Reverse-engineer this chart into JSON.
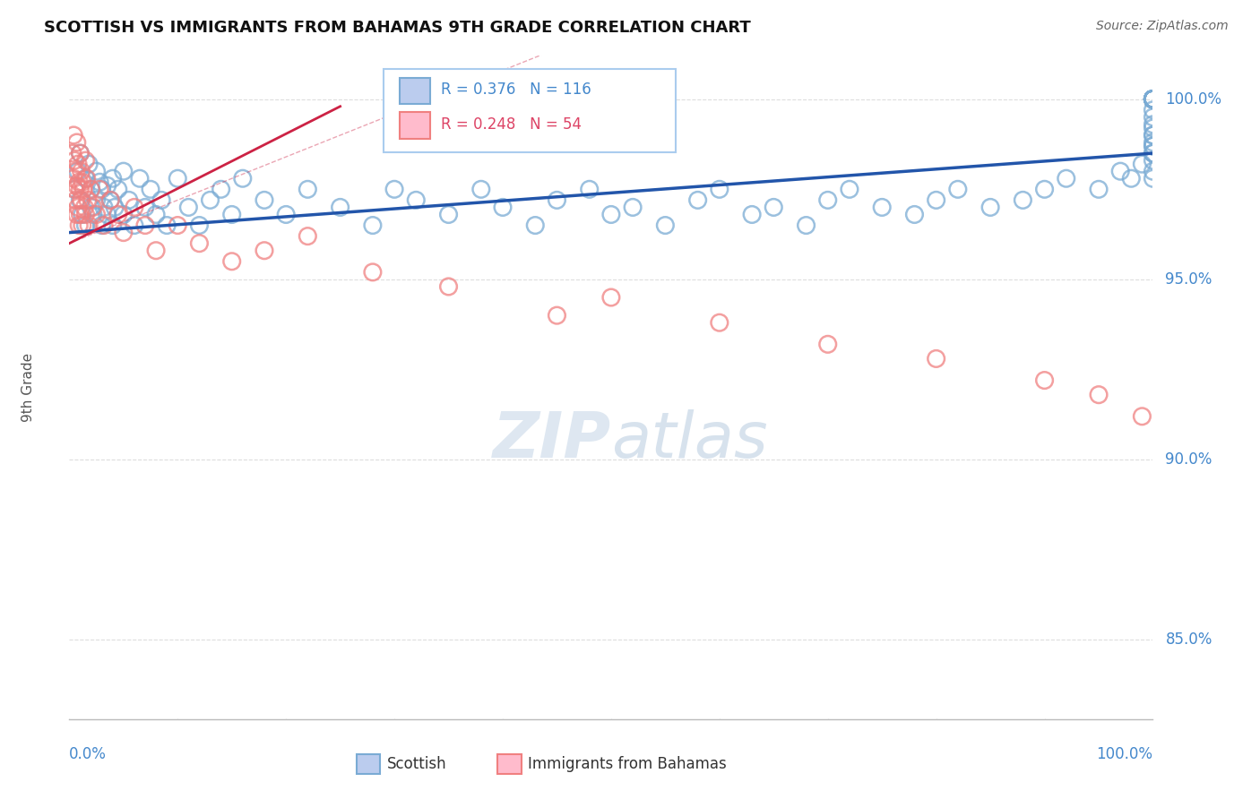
{
  "title": "SCOTTISH VS IMMIGRANTS FROM BAHAMAS 9TH GRADE CORRELATION CHART",
  "source": "Source: ZipAtlas.com",
  "ylabel": "9th Grade",
  "y_ticks": [
    0.85,
    0.9,
    0.95,
    1.0
  ],
  "y_tick_labels": [
    "85.0%",
    "90.0%",
    "95.0%",
    "100.0%"
  ],
  "x_range": [
    0.0,
    1.0
  ],
  "y_range": [
    0.828,
    1.012
  ],
  "blue_R": 0.376,
  "blue_N": 116,
  "pink_R": 0.248,
  "pink_N": 54,
  "blue_color": "#7AABD4",
  "pink_color": "#F08080",
  "blue_line_color": "#2255AA",
  "pink_line_color": "#CC2244",
  "axis_color": "#BBBBBB",
  "tick_label_color": "#4488CC",
  "grid_color": "#DDDDDD",
  "title_color": "#111111",
  "watermark_color": "#C8D8E8",
  "legend_border_color": "#AACCEE",
  "blue_scatter_x": [
    0.005,
    0.008,
    0.01,
    0.01,
    0.012,
    0.015,
    0.015,
    0.018,
    0.02,
    0.02,
    0.022,
    0.025,
    0.025,
    0.028,
    0.03,
    0.03,
    0.032,
    0.035,
    0.035,
    0.038,
    0.04,
    0.04,
    0.042,
    0.045,
    0.05,
    0.05,
    0.055,
    0.06,
    0.065,
    0.07,
    0.075,
    0.08,
    0.085,
    0.09,
    0.1,
    0.11,
    0.12,
    0.13,
    0.14,
    0.15,
    0.16,
    0.18,
    0.2,
    0.22,
    0.25,
    0.28,
    0.3,
    0.32,
    0.35,
    0.38,
    0.4,
    0.43,
    0.45,
    0.48,
    0.5,
    0.52,
    0.55,
    0.58,
    0.6,
    0.63,
    0.65,
    0.68,
    0.7,
    0.72,
    0.75,
    0.78,
    0.8,
    0.82,
    0.85,
    0.88,
    0.9,
    0.92,
    0.95,
    0.97,
    0.98,
    0.99,
    1.0,
    1.0,
    1.0,
    1.0,
    1.0,
    1.0,
    1.0,
    1.0,
    1.0,
    1.0,
    1.0,
    1.0,
    1.0,
    1.0,
    1.0,
    1.0,
    1.0,
    1.0,
    1.0,
    1.0,
    1.0,
    1.0,
    1.0,
    1.0,
    1.0,
    1.0,
    1.0,
    1.0,
    1.0,
    1.0,
    1.0,
    1.0,
    1.0,
    1.0,
    1.0,
    1.0,
    1.0,
    1.0,
    1.0,
    1.0,
    1.0
  ],
  "blue_scatter_y": [
    0.975,
    0.98,
    0.972,
    0.985,
    0.968,
    0.978,
    0.965,
    0.982,
    0.97,
    0.975,
    0.968,
    0.98,
    0.972,
    0.977,
    0.965,
    0.975,
    0.97,
    0.968,
    0.976,
    0.972,
    0.965,
    0.978,
    0.97,
    0.975,
    0.968,
    0.98,
    0.972,
    0.965,
    0.978,
    0.97,
    0.975,
    0.968,
    0.972,
    0.965,
    0.978,
    0.97,
    0.965,
    0.972,
    0.975,
    0.968,
    0.978,
    0.972,
    0.968,
    0.975,
    0.97,
    0.965,
    0.975,
    0.972,
    0.968,
    0.975,
    0.97,
    0.965,
    0.972,
    0.975,
    0.968,
    0.97,
    0.965,
    0.972,
    0.975,
    0.968,
    0.97,
    0.965,
    0.972,
    0.975,
    0.97,
    0.968,
    0.972,
    0.975,
    0.97,
    0.972,
    0.975,
    0.978,
    0.975,
    0.98,
    0.978,
    0.982,
    0.978,
    0.98,
    0.983,
    0.985,
    0.987,
    0.99,
    0.985,
    0.988,
    0.992,
    0.987,
    0.993,
    0.99,
    0.995,
    0.997,
    1.0,
    1.0,
    1.0,
    1.0,
    1.0,
    1.0,
    1.0,
    1.0,
    1.0,
    1.0,
    1.0,
    1.0,
    1.0,
    1.0,
    1.0,
    1.0,
    1.0,
    1.0,
    1.0,
    1.0,
    1.0,
    1.0,
    1.0,
    1.0,
    1.0,
    1.0,
    1.0
  ],
  "pink_scatter_x": [
    0.003,
    0.004,
    0.004,
    0.005,
    0.005,
    0.006,
    0.006,
    0.007,
    0.007,
    0.007,
    0.008,
    0.008,
    0.009,
    0.009,
    0.01,
    0.01,
    0.01,
    0.011,
    0.011,
    0.012,
    0.012,
    0.013,
    0.014,
    0.015,
    0.015,
    0.016,
    0.017,
    0.018,
    0.02,
    0.022,
    0.025,
    0.028,
    0.032,
    0.038,
    0.045,
    0.05,
    0.06,
    0.07,
    0.08,
    0.1,
    0.12,
    0.15,
    0.18,
    0.22,
    0.28,
    0.35,
    0.45,
    0.5,
    0.6,
    0.7,
    0.8,
    0.9,
    0.95,
    0.99
  ],
  "pink_scatter_y": [
    0.985,
    0.978,
    0.99,
    0.975,
    0.983,
    0.98,
    0.972,
    0.988,
    0.976,
    0.968,
    0.982,
    0.97,
    0.977,
    0.965,
    0.985,
    0.975,
    0.968,
    0.98,
    0.972,
    0.977,
    0.965,
    0.975,
    0.97,
    0.983,
    0.968,
    0.978,
    0.972,
    0.965,
    0.975,
    0.97,
    0.968,
    0.975,
    0.965,
    0.972,
    0.968,
    0.963,
    0.97,
    0.965,
    0.958,
    0.965,
    0.96,
    0.955,
    0.958,
    0.962,
    0.952,
    0.948,
    0.94,
    0.945,
    0.938,
    0.932,
    0.928,
    0.922,
    0.918,
    0.912
  ],
  "blue_line_x": [
    0.0,
    1.0
  ],
  "blue_line_y": [
    0.963,
    0.985
  ],
  "pink_line_x": [
    0.0,
    0.25
  ],
  "pink_line_y": [
    0.96,
    0.998
  ]
}
